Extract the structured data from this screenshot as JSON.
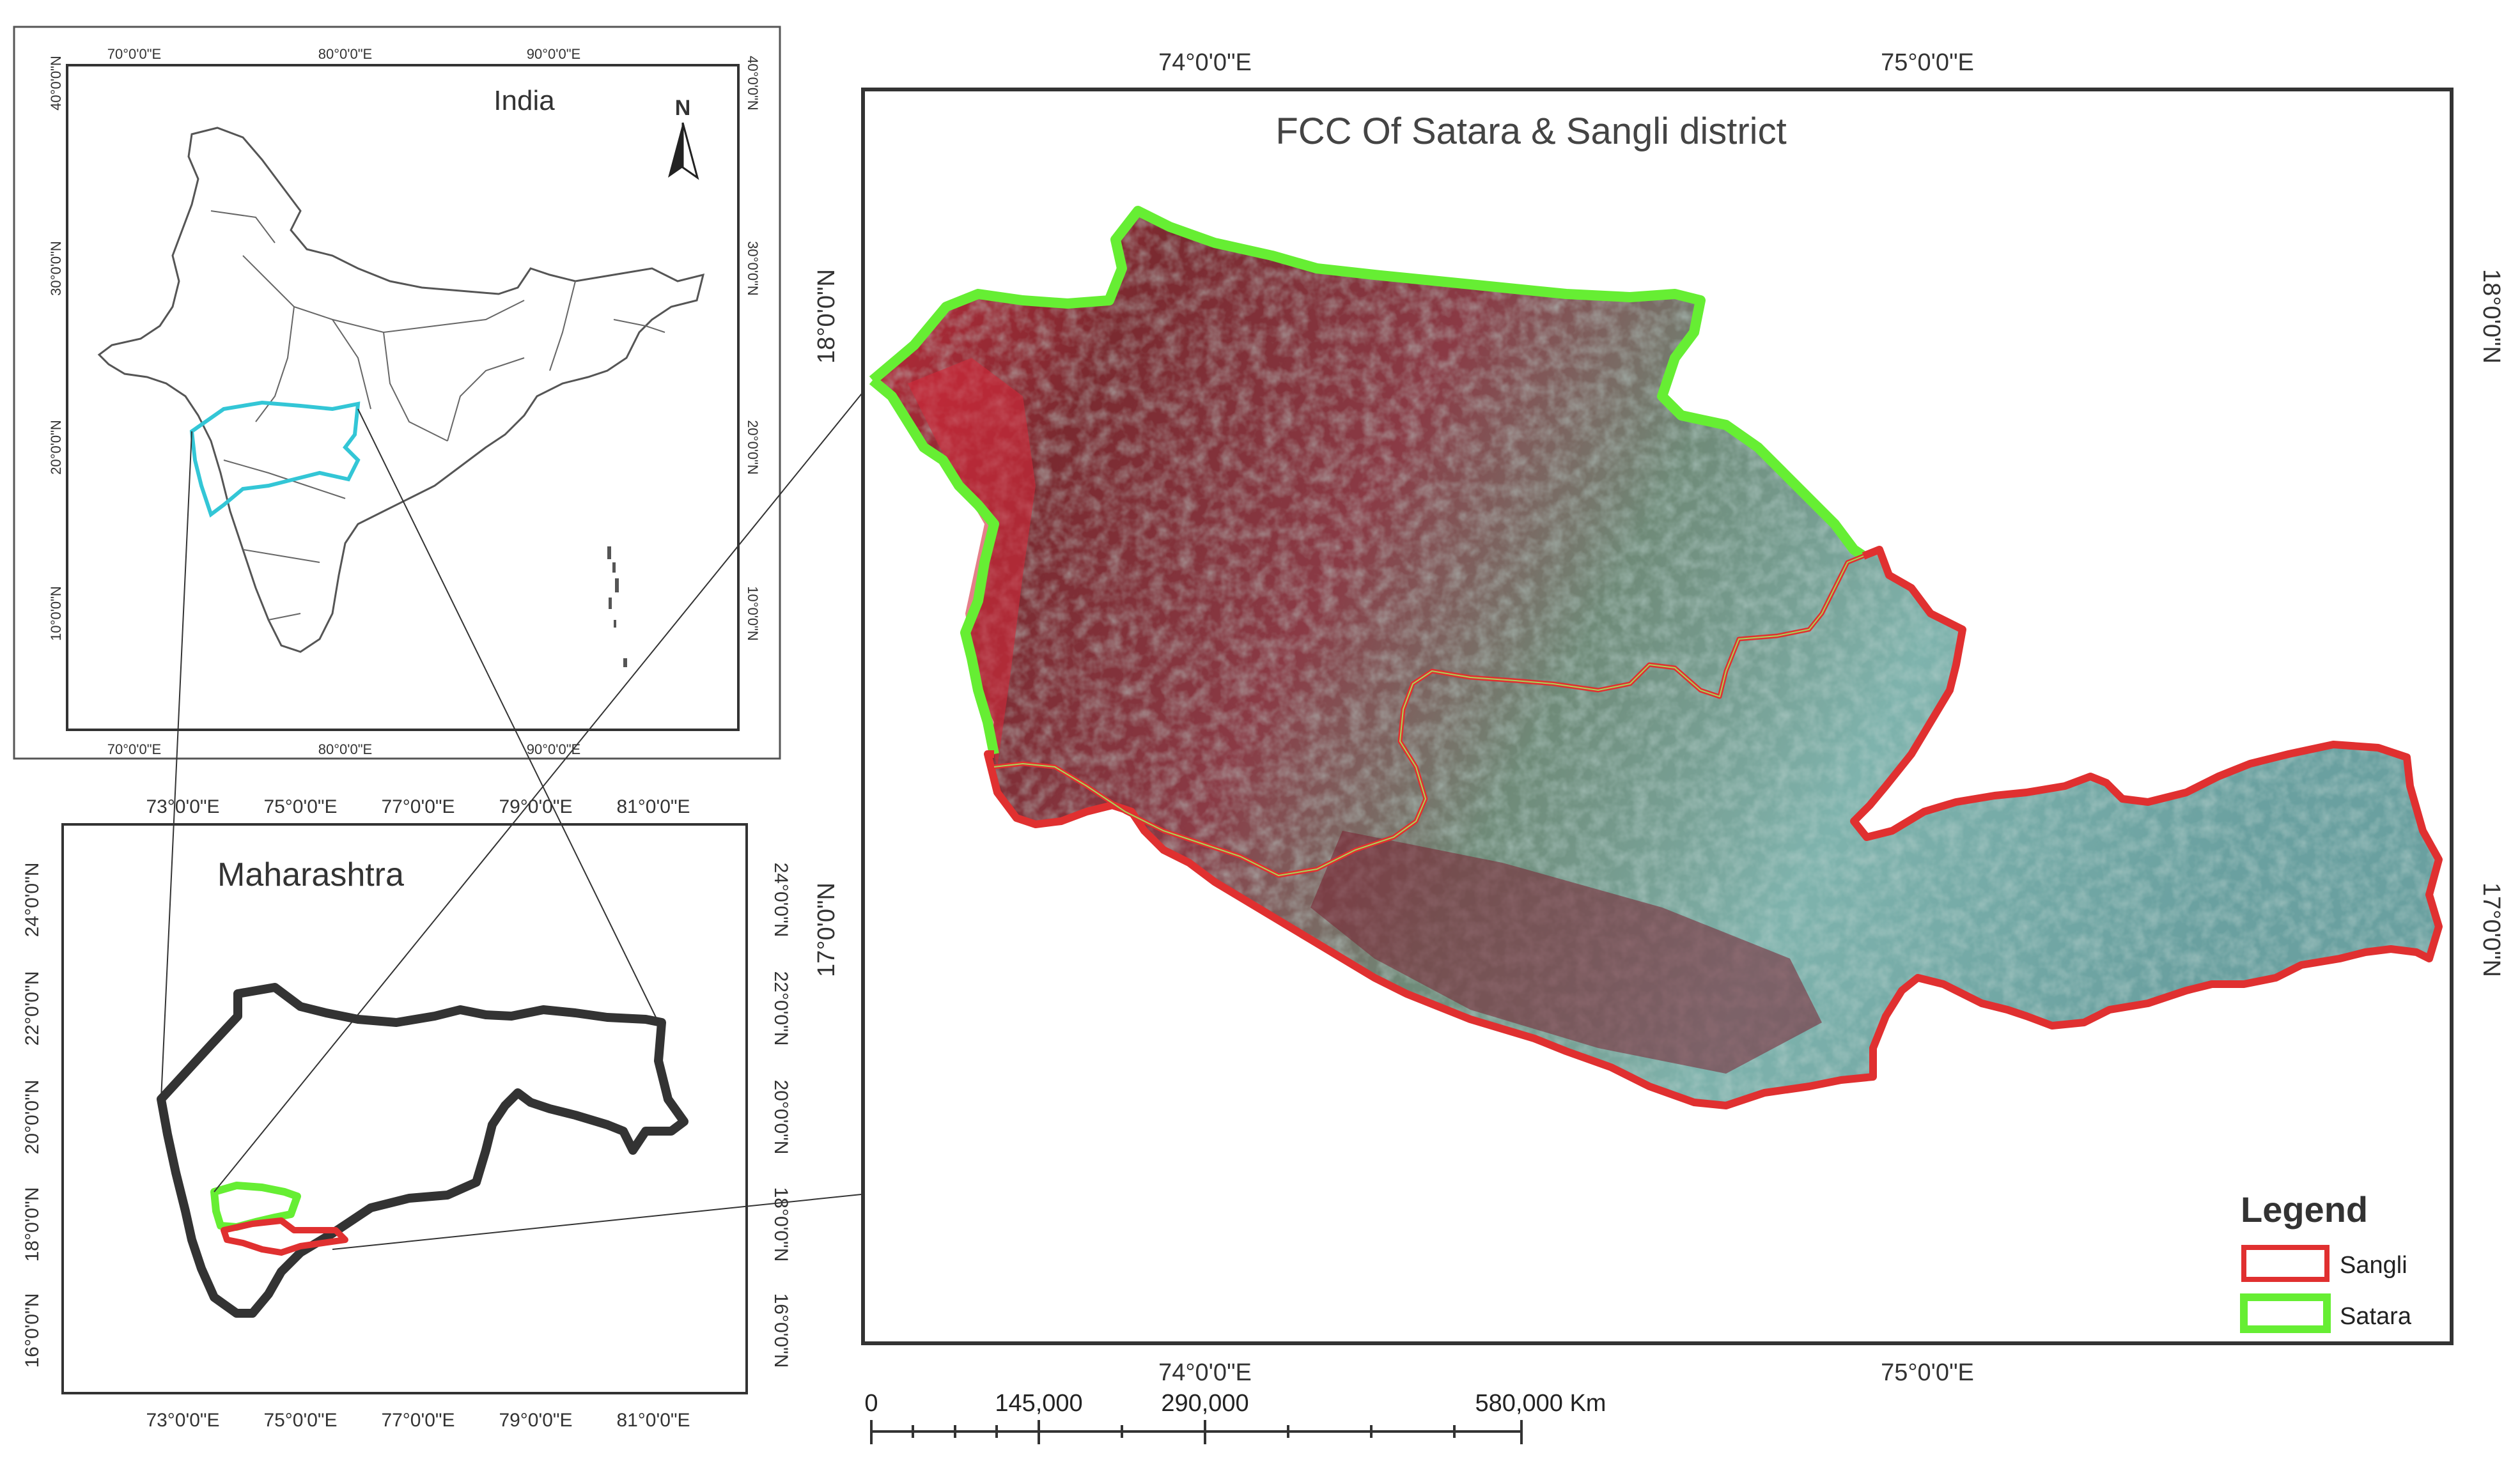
{
  "main_map": {
    "title": "FCC Of Satara & Sangli district",
    "top_ticks": [
      "74°0'0\"E",
      "75°0'0\"E"
    ],
    "bottom_ticks": [
      "74°0'0\"E",
      "75°0'0\"E"
    ],
    "left_ticks": [
      "18°0'0\"N",
      "17°0'0\"N"
    ],
    "right_ticks": [
      "18°0'0\"N",
      "17°0'0\"N"
    ]
  },
  "india_map": {
    "title": "India",
    "north_label": "N",
    "top_ticks": [
      "70°0'0\"E",
      "80°0'0\"E",
      "90°0'0\"E"
    ],
    "bottom_ticks": [
      "70°0'0\"E",
      "80°0'0\"E",
      "90°0'0\"E"
    ],
    "left_ticks": [
      "40°0'0\"N",
      "30°0'0\"N",
      "20°0'0\"N",
      "10°0'0\"N"
    ],
    "right_ticks": [
      "40°0'0\"N",
      "30°0'0\"N",
      "20°0'0\"N",
      "10°0'0\"N"
    ]
  },
  "maharashtra_map": {
    "title": "Maharashtra",
    "top_ticks": [
      "73°0'0\"E",
      "75°0'0\"E",
      "77°0'0\"E",
      "79°0'0\"E",
      "81°0'0\"E"
    ],
    "bottom_ticks": [
      "73°0'0\"E",
      "75°0'0\"E",
      "77°0'0\"E",
      "79°0'0\"E",
      "81°0'0\"E"
    ],
    "left_ticks": [
      "24°0'0\"N",
      "22°0'0\"N",
      "20°0'0\"N",
      "18°0'0\"N",
      "16°0'0\"N"
    ],
    "right_ticks": [
      "24°0'0\"N",
      "22°0'0\"N",
      "20°0'0\"N",
      "18°0'0\"N",
      "16°0'0\"N"
    ]
  },
  "legend": {
    "title": "Legend",
    "items": [
      {
        "label": "Sangli",
        "color": "#e03030"
      },
      {
        "label": "Satara",
        "color": "#66ee33"
      }
    ]
  },
  "scale_bar": {
    "labels": [
      "0",
      "145,000",
      "290,000",
      "580,000 Km"
    ]
  },
  "colors": {
    "satara_outline": "#66ee33",
    "sangli_outline": "#e03030",
    "highlight_state": "#33c6d6",
    "fcc_red": "#9a2a3a",
    "fcc_cyan": "#7fb8b0"
  }
}
